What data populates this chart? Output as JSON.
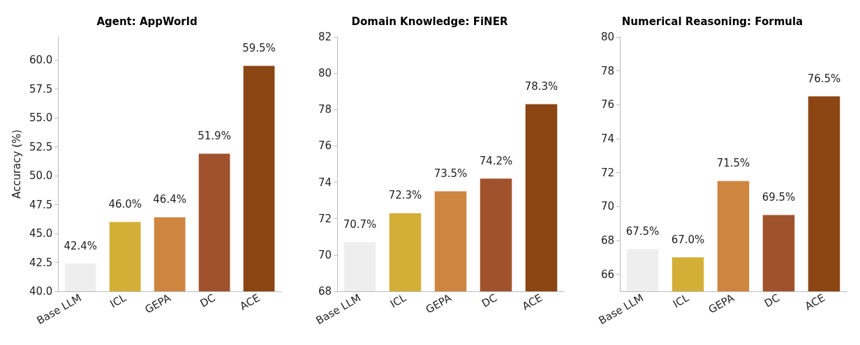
{
  "chart_data": [
    {
      "type": "bar",
      "title": "Agent: AppWorld",
      "ylabel": "Accuracy (%)",
      "categories": [
        "Base LLM",
        "ICL",
        "GEPA",
        "DC",
        "ACE"
      ],
      "values": [
        42.4,
        46.0,
        46.4,
        51.9,
        59.5
      ],
      "colors": [
        "#eeeeee",
        "#d4af37",
        "#cd853f",
        "#a0522d",
        "#8b4513"
      ],
      "value_labels": [
        "42.4%",
        "46.0%",
        "46.4%",
        "51.9%",
        "59.5%"
      ],
      "ylim": [
        40,
        62
      ],
      "yticks": [
        {
          "value": 40,
          "label": "40.0"
        },
        {
          "value": 42.5,
          "label": "42.5"
        },
        {
          "value": 45,
          "label": "45.0"
        },
        {
          "value": 47.5,
          "label": "47.5"
        },
        {
          "value": 50,
          "label": "50.0"
        },
        {
          "value": 52.5,
          "label": "52.5"
        },
        {
          "value": 55,
          "label": "55.0"
        },
        {
          "value": 57.5,
          "label": "57.5"
        },
        {
          "value": 60,
          "label": "60.0"
        }
      ]
    },
    {
      "type": "bar",
      "title": "Domain Knowledge: FiNER",
      "categories": [
        "Base LLM",
        "ICL",
        "GEPA",
        "DC",
        "ACE"
      ],
      "values": [
        70.7,
        72.3,
        73.5,
        74.2,
        78.3
      ],
      "colors": [
        "#eeeeee",
        "#d4af37",
        "#cd853f",
        "#a0522d",
        "#8b4513"
      ],
      "value_labels": [
        "70.7%",
        "72.3%",
        "73.5%",
        "74.2%",
        "78.3%"
      ],
      "ylim": [
        68,
        82
      ],
      "yticks": [
        68,
        70,
        72,
        74,
        76,
        78,
        80,
        82
      ]
    },
    {
      "type": "bar",
      "title": "Numerical Reasoning: Formula",
      "categories": [
        "Base LLM",
        "ICL",
        "GEPA",
        "DC",
        "ACE"
      ],
      "values": [
        67.5,
        67.0,
        71.5,
        69.5,
        76.5
      ],
      "colors": [
        "#eeeeee",
        "#d4af37",
        "#cd853f",
        "#a0522d",
        "#8b4513"
      ],
      "value_labels": [
        "67.5%",
        "67.0%",
        "71.5%",
        "69.5%",
        "76.5%"
      ],
      "ylim": [
        65,
        80
      ],
      "yticks": [
        66,
        68,
        70,
        72,
        74,
        76,
        78,
        80
      ]
    }
  ]
}
